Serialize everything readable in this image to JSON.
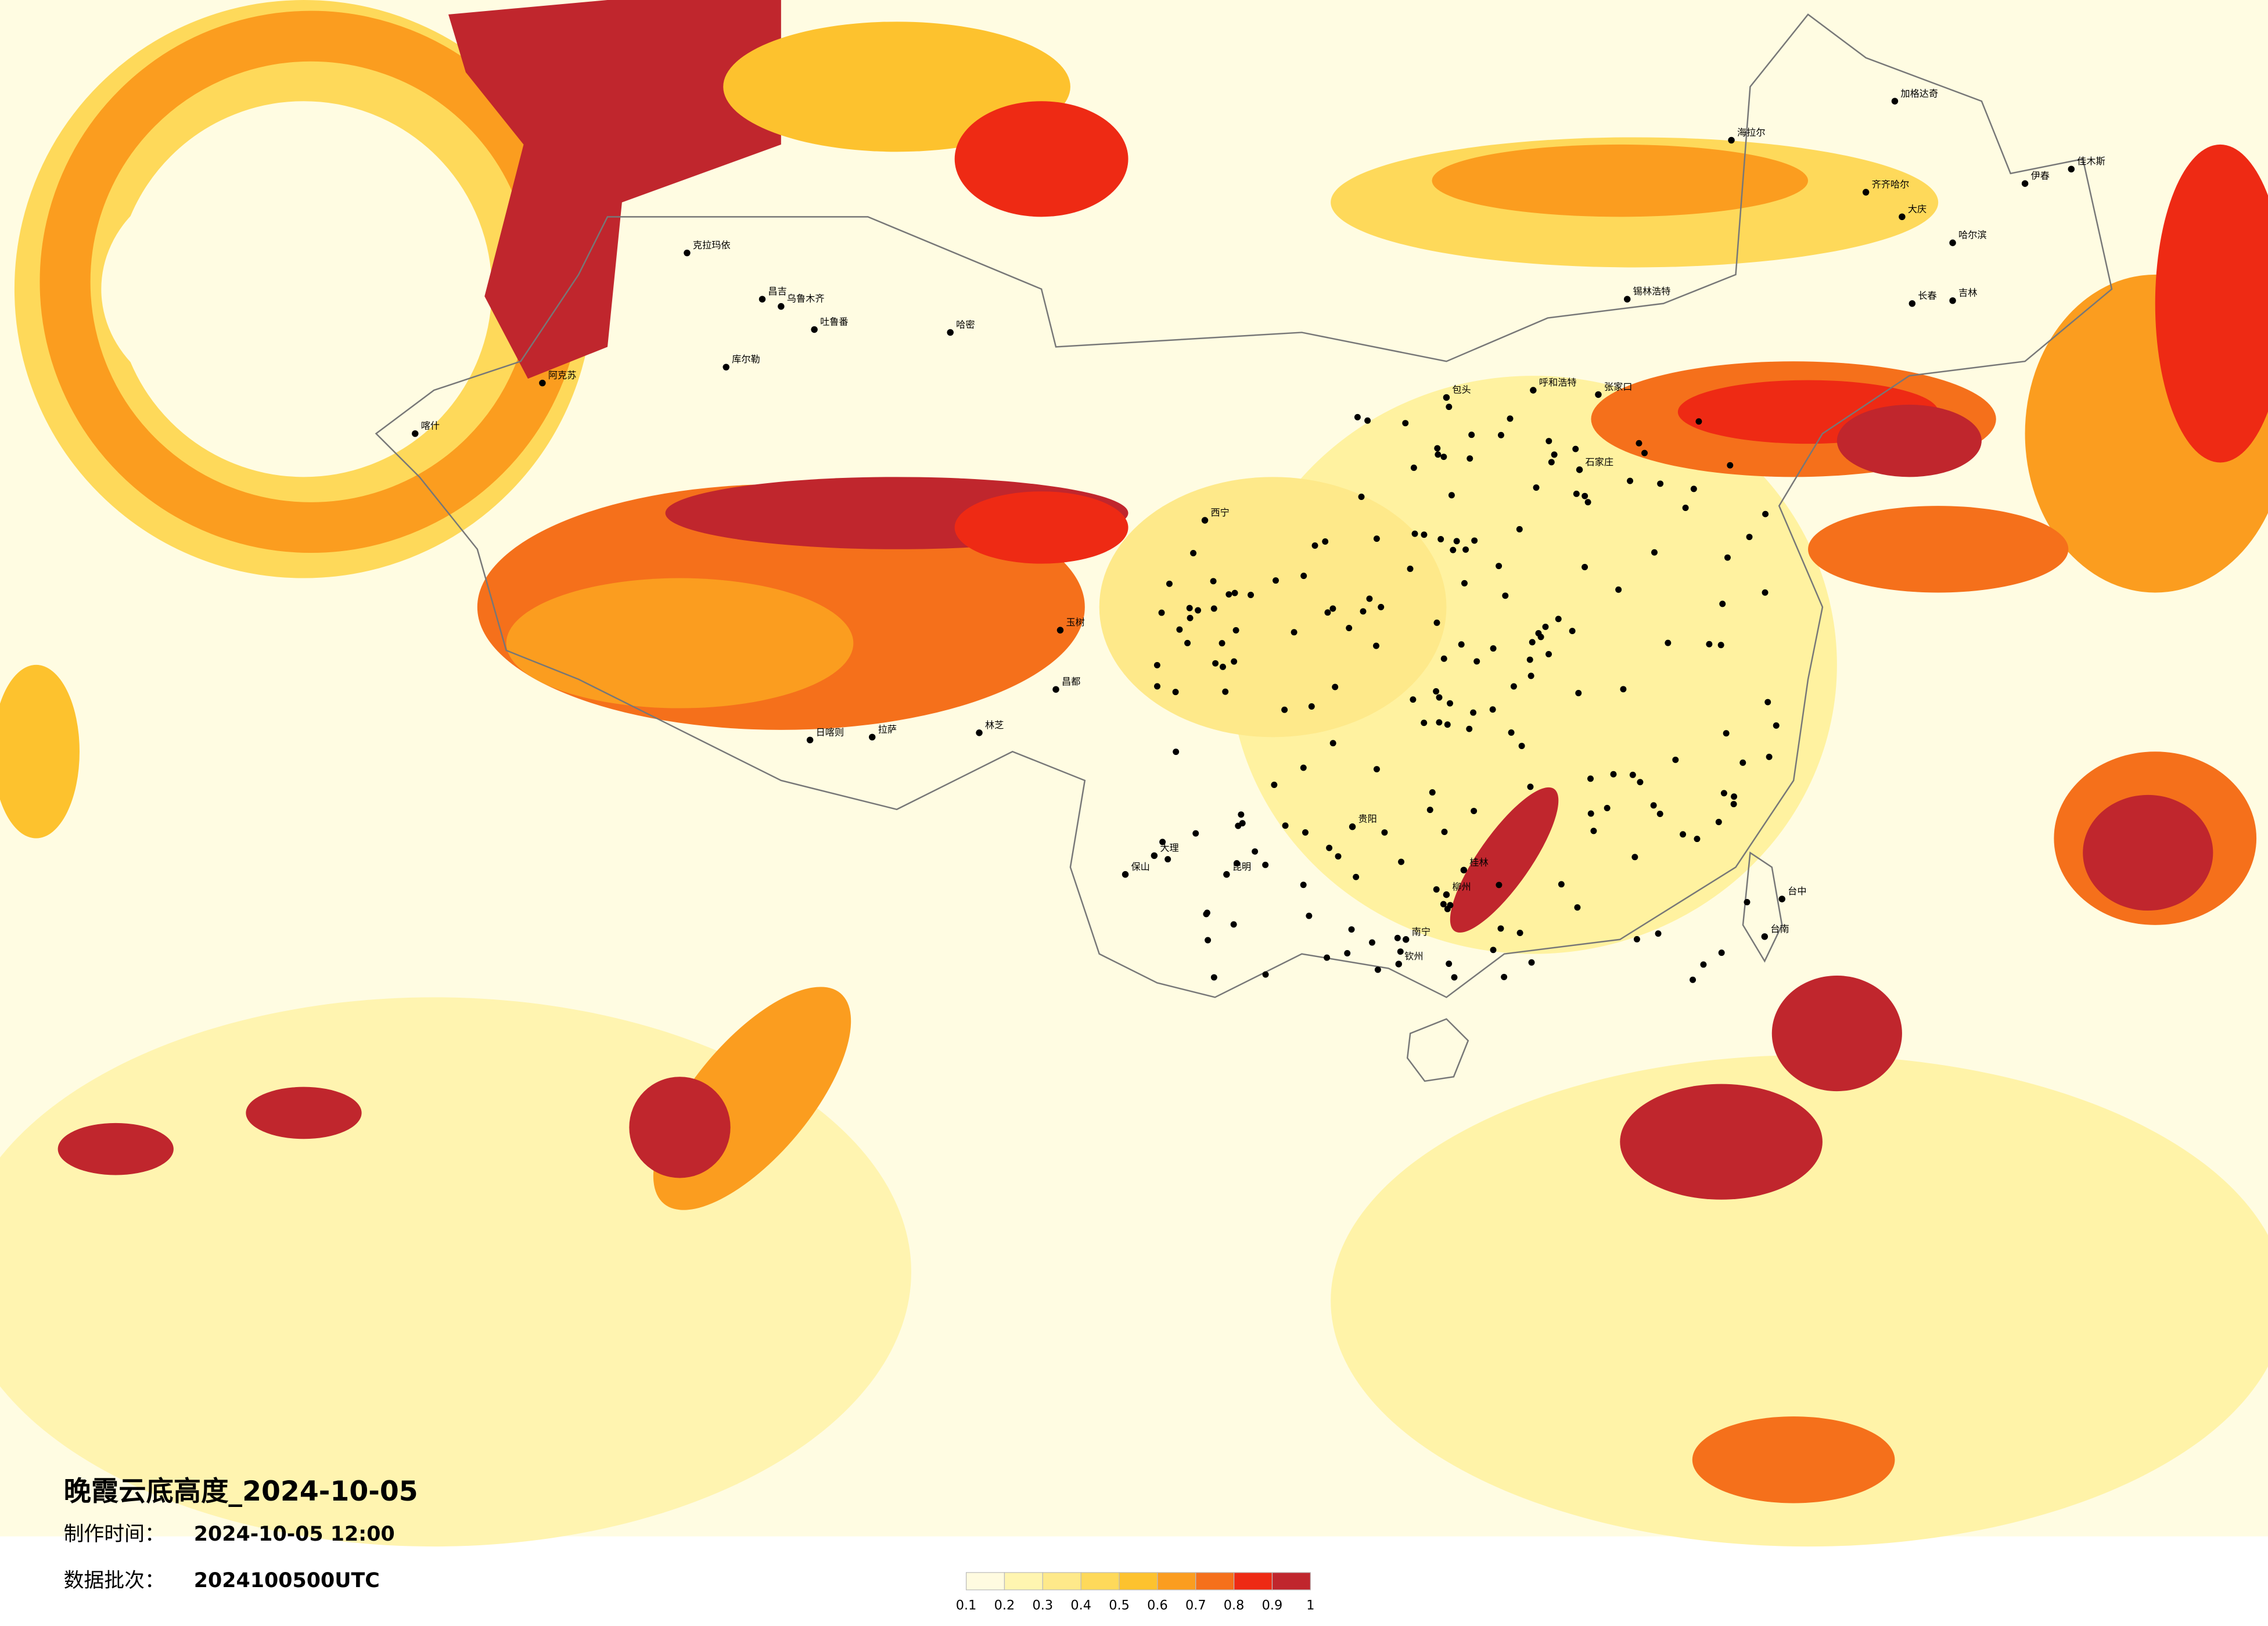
{
  "title": "晚霞云底高度_2024-10-05",
  "made_label": "制作时间：",
  "made_value": "2024-10-05 12:00",
  "batch_label": "数据批次：",
  "batch_value": "2024100500UTC",
  "legend": {
    "ticks": [
      0.1,
      0.2,
      0.3,
      0.4,
      0.5,
      0.6,
      0.7,
      0.8,
      0.9,
      1
    ],
    "colors": [
      "#fffbe0",
      "#fff5b0",
      "#fee98a",
      "#fed95a",
      "#fdc22e",
      "#fb9d1f",
      "#f5701b",
      "#ee2a14",
      "#c0262d"
    ]
  },
  "cities": [
    "克拉玛依",
    "昌吉",
    "乌鲁木齐",
    "吐鲁番",
    "哈密",
    "库尔勒",
    "阿克苏",
    "喀什",
    "海拉尔",
    "加格达奇",
    "齐齐哈尔",
    "大庆",
    "哈尔滨",
    "伊春",
    "佳木斯",
    "长春",
    "吉林",
    "锡林浩特",
    "呼和浩特",
    "包头",
    "张家口",
    "石家庄",
    "西宁",
    "拉萨",
    "日喀则",
    "林芝",
    "昌都",
    "玉树",
    "大理",
    "保山",
    "昆明",
    "贵阳",
    "桂林",
    "柳州",
    "南宁",
    "钦州",
    "台中",
    "台南"
  ]
}
